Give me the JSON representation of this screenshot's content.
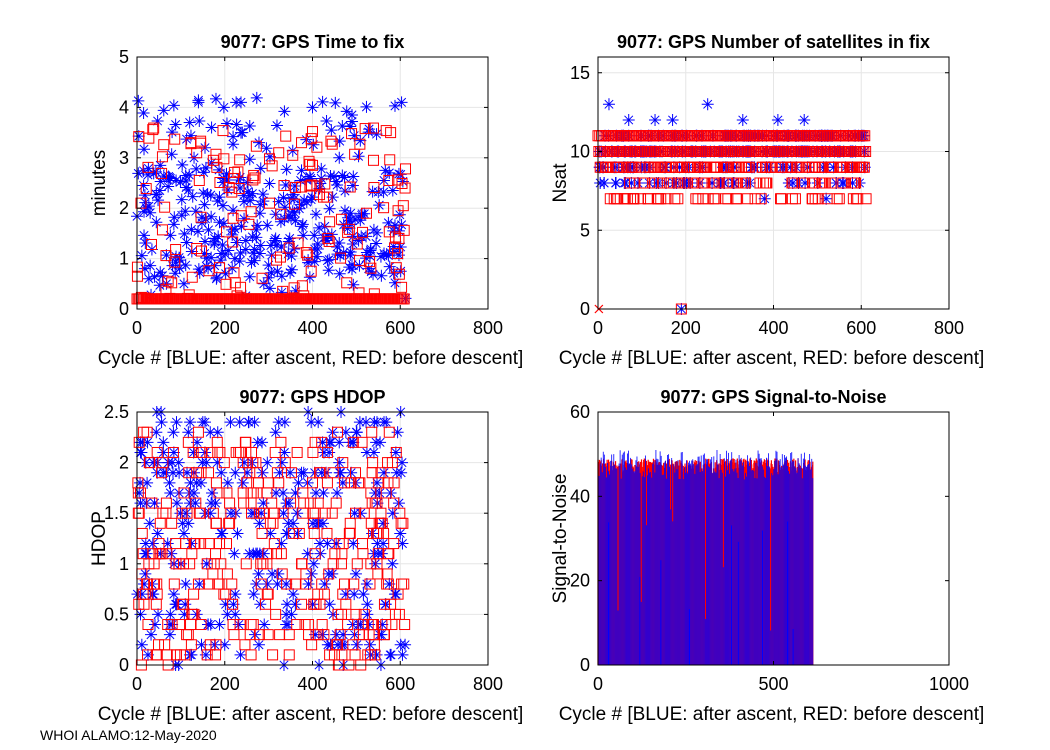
{
  "figure": {
    "footer": "WHOI ALAMO:12-May-2020",
    "colors": {
      "blue": "#0000ff",
      "red": "#ff0000",
      "grid": "#e6e6e6",
      "axis": "#000000"
    }
  },
  "chart_data": [
    {
      "type": "scatter",
      "title": "9077: GPS Time to fix",
      "xlabel": "Cycle #  [BLUE: after ascent, RED: before descent]",
      "ylabel": "minutes",
      "xlim": [
        0,
        800
      ],
      "ylim": [
        0,
        5
      ],
      "xticks": [
        0,
        200,
        400,
        600,
        800
      ],
      "xtick_labels": [
        "0",
        "200",
        "400",
        "600",
        "800"
      ],
      "yticks": [
        0,
        1,
        2,
        3,
        4,
        5
      ],
      "ytick_labels": [
        "0",
        "1",
        "2",
        "3",
        "4",
        "5"
      ],
      "grid": true,
      "series": [
        {
          "name": "after ascent",
          "marker": "asterisk",
          "color": "blue",
          "gen": "ttf_blue",
          "x": [],
          "y": []
        },
        {
          "name": "before descent",
          "marker": "square",
          "color": "red",
          "gen": "ttf_red",
          "x": [],
          "y": []
        }
      ]
    },
    {
      "type": "scatter",
      "title": "9077: GPS Number of satellites in fix",
      "xlabel": "Cycle #  [BLUE: after ascent, RED: before descent]",
      "ylabel": "Nsat",
      "xlim": [
        0,
        800
      ],
      "ylim": [
        0,
        16
      ],
      "xticks": [
        0,
        200,
        400,
        600,
        800
      ],
      "xtick_labels": [
        "0",
        "200",
        "400",
        "600",
        "800"
      ],
      "yticks": [
        0,
        5,
        10,
        15
      ],
      "ytick_labels": [
        "0",
        "5",
        "10",
        "15"
      ],
      "grid": true,
      "series": [
        {
          "name": "after ascent",
          "marker": "asterisk",
          "color": "blue",
          "gen": "nsat_blue",
          "x": [
            25,
            70,
            130,
            170,
            250,
            330,
            410,
            470,
            520,
            560,
            190,
            380
          ],
          "y": [
            13,
            12,
            12,
            12,
            13,
            12,
            12,
            12,
            7,
            8,
            0,
            7
          ]
        },
        {
          "name": "before descent",
          "marker": "square",
          "color": "red",
          "gen": "nsat_red",
          "x": [
            190
          ],
          "y": [
            0
          ]
        },
        {
          "name": "missing fix",
          "marker": "x",
          "color": "red",
          "x": [
            2
          ],
          "y": [
            0
          ]
        }
      ]
    },
    {
      "type": "scatter",
      "title": "9077: GPS HDOP",
      "xlabel": "Cycle #  [BLUE: after ascent, RED: before descent]",
      "ylabel": "HDOP",
      "xlim": [
        0,
        800
      ],
      "ylim": [
        0,
        2.5
      ],
      "xticks": [
        0,
        200,
        400,
        600,
        800
      ],
      "xtick_labels": [
        "0",
        "200",
        "400",
        "600",
        "800"
      ],
      "yticks": [
        0,
        0.5,
        1,
        1.5,
        2,
        2.5
      ],
      "ytick_labels": [
        "0",
        "0.5",
        "1",
        "1.5",
        "2",
        "2.5"
      ],
      "grid": true,
      "series": [
        {
          "name": "after ascent",
          "marker": "asterisk",
          "color": "blue",
          "gen": "hdop_blue",
          "x": [],
          "y": []
        },
        {
          "name": "before descent",
          "marker": "square",
          "color": "red",
          "gen": "hdop_red",
          "x": [],
          "y": []
        }
      ]
    },
    {
      "type": "bar",
      "title": "9077: GPS Signal-to-Noise",
      "xlabel": "Cycle #  [BLUE: after ascent, RED: before descent]",
      "ylabel": "Signal-to-Noise",
      "xlim": [
        0,
        1000
      ],
      "ylim": [
        0,
        60
      ],
      "xticks": [
        0,
        500,
        1000
      ],
      "xtick_labels": [
        "0",
        "500",
        "1000"
      ],
      "yticks": [
        0,
        20,
        40,
        60
      ],
      "ytick_labels": [
        "0",
        "20",
        "40",
        "60"
      ],
      "grid": false,
      "series": [
        {
          "name": "before descent",
          "color": "red",
          "x_range": [
            0,
            612
          ],
          "typical_value": 47,
          "band": [
            45,
            49
          ]
        },
        {
          "name": "after ascent",
          "color": "blue",
          "x_range": [
            0,
            612
          ],
          "typical_value": 47,
          "band": [
            44,
            51
          ]
        }
      ]
    }
  ]
}
